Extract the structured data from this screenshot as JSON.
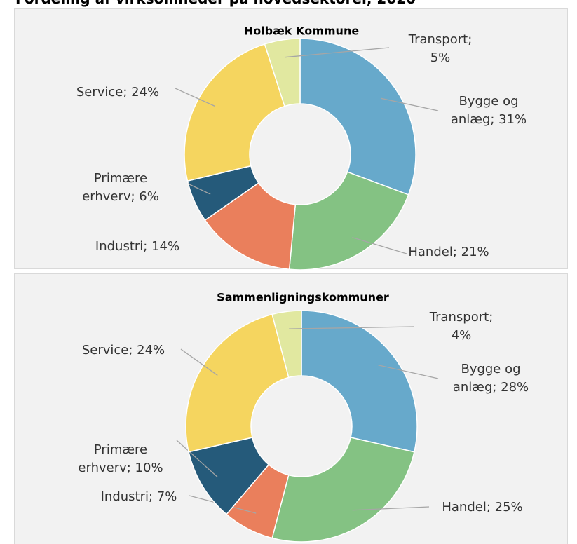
{
  "title": "Fordeling af virksomheder på hovedsektorer, 2020",
  "chart_data": [
    {
      "type": "donut",
      "title": "Holbæk Kommune",
      "values": [
        31,
        21,
        14,
        6,
        24,
        5
      ],
      "value_labels": [
        "Bygge og anlæg; 31%",
        "Handel; 21%",
        "Industri; 14%",
        "Primære erhverv; 6%",
        "Service; 24%",
        "Transport; 5%"
      ],
      "colors": [
        "#67a9cb",
        "#84c283",
        "#ea7f5c",
        "#255a7a",
        "#f5d55f",
        "#e1e8a0"
      ]
    },
    {
      "type": "donut",
      "title": "Sammenligningskommuner",
      "values": [
        28,
        25,
        7,
        10,
        24,
        4
      ],
      "value_labels": [
        "Bygge og anlæg; 28%",
        "Handel; 25%",
        "Industri; 7%",
        "Primære erhverv; 10%",
        "Service; 24%",
        "Transport; 4%"
      ],
      "colors": [
        "#67a9cb",
        "#84c283",
        "#ea7f5c",
        "#255a7a",
        "#f5d55f",
        "#e1e8a0"
      ]
    }
  ]
}
